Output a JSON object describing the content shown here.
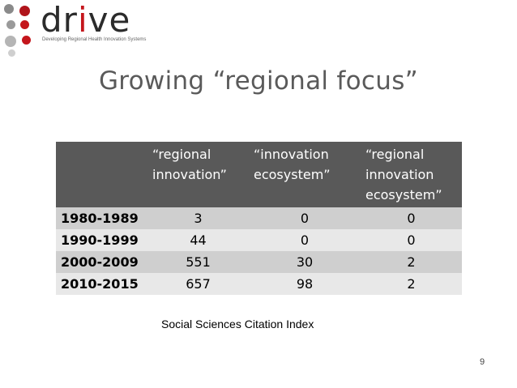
{
  "logo": {
    "word_prefix": "dr",
    "word_accent": "i",
    "word_suffix": "ve",
    "tagline": "Developing Regional Health Innovation Systems",
    "accent_color": "#c4161c"
  },
  "slide": {
    "title": "Growing “regional focus”",
    "caption": "Social Sciences Citation Index",
    "page_number": "9"
  },
  "table": {
    "headers": [
      "",
      "“regional innovation”",
      "“innovation ecosystem”",
      "“regional innovation ecosystem”"
    ],
    "rows": [
      {
        "period": "1980-1989",
        "values": [
          "3",
          "0",
          "0"
        ]
      },
      {
        "period": "1990-1999",
        "values": [
          "44",
          "0",
          "0"
        ]
      },
      {
        "period": "2000-2009",
        "values": [
          "551",
          "30",
          "2"
        ]
      },
      {
        "period": "2010-2015",
        "values": [
          "657",
          "98",
          "2"
        ]
      }
    ],
    "header_color": "#595959",
    "row_colors": [
      "#cfcfcf",
      "#e8e8e8"
    ]
  }
}
